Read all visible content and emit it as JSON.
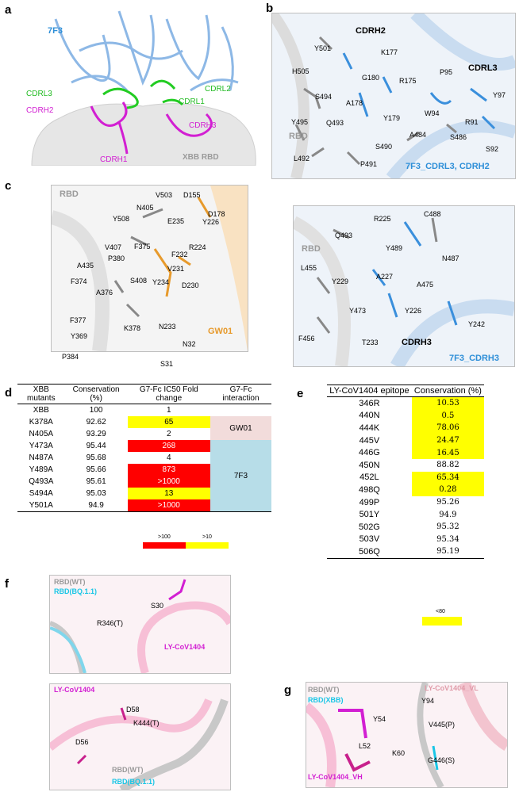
{
  "panels": {
    "a": "a",
    "b": "b",
    "c": "c",
    "d": "d",
    "e": "e",
    "f": "f",
    "g": "g"
  },
  "panel_a": {
    "title": "7F3",
    "labels": {
      "cdrl3": "CDRL3",
      "cdrl2": "CDRL2",
      "cdrl1": "CDRL1",
      "cdrh2": "CDRH2",
      "cdrh3": "CDRH3",
      "cdrh1": "CDRH1",
      "rbd": "XBB RBD"
    }
  },
  "panel_b": {
    "residues": [
      "Y501",
      "CDRH2",
      "K177",
      "H505",
      "G180",
      "R175",
      "P95",
      "CDRL3",
      "S494",
      "A178",
      "Y97",
      "W94",
      "Y495",
      "Q493",
      "Y179",
      "R91",
      "RBD",
      "A484",
      "S486",
      "L492",
      "S490",
      "S92",
      "P491"
    ],
    "caption": "7F3_CDRL3, CDRH2"
  },
  "panel_c_left": {
    "residues": [
      "RBD",
      "V503",
      "D155",
      "N405",
      "Y508",
      "D178",
      "E235",
      "Y226",
      "V407",
      "F375",
      "P380",
      "R224",
      "A435",
      "F232",
      "S408",
      "F374",
      "V231",
      "A376",
      "Y234",
      "D230",
      "F377",
      "N233",
      "Y369",
      "K378",
      "N32",
      "P384",
      "S31"
    ],
    "caption": "GW01"
  },
  "panel_c_right": {
    "residues": [
      "R225",
      "C488",
      "Q493",
      "RBD",
      "Y489",
      "L455",
      "N487",
      "A227",
      "Y229",
      "A475",
      "Y473",
      "Y226",
      "Y242",
      "F456",
      "T233",
      "CDRH3"
    ],
    "caption": "7F3_CDRH3"
  },
  "table_d": {
    "headers": [
      "XBB mutants",
      "Conservation (%)",
      "G7-Fc IC50 Fold change",
      "G7-Fc interaction"
    ],
    "rows": [
      {
        "mutant": "XBB",
        "conservation": "100",
        "fold": "1"
      },
      {
        "mutant": "K378A",
        "conservation": "92.62",
        "fold": "65"
      },
      {
        "mutant": "N405A",
        "conservation": "93.29",
        "fold": "2"
      },
      {
        "mutant": "Y473A",
        "conservation": "95.44",
        "fold": "268"
      },
      {
        "mutant": "N487A",
        "conservation": "95.68",
        "fold": "4"
      },
      {
        "mutant": "Y489A",
        "conservation": "95.66",
        "fold": "873"
      },
      {
        "mutant": "Q493A",
        "conservation": "95.61",
        "fold": ">1000"
      },
      {
        "mutant": "S494A",
        "conservation": "95.03",
        "fold": "13"
      },
      {
        "mutant": "Y501A",
        "conservation": "94.9",
        "fold": ">1000"
      }
    ],
    "groups": {
      "gw01": "GW01",
      "f7f3": "7F3"
    },
    "legend": {
      "red": ">100",
      "yellow": ">10"
    },
    "colors": {
      "red": "#ff0000",
      "yellow": "#ffff00",
      "gw01": "#f2dcdb",
      "f7f3": "#b7dde8"
    }
  },
  "table_e": {
    "headers": [
      "LY-CoV1404 epitope",
      "Conservation (%)"
    ],
    "rows": [
      {
        "epitope": "346R",
        "value": "10.53"
      },
      {
        "epitope": "440N",
        "value": "0.5"
      },
      {
        "epitope": "444K",
        "value": "78.06"
      },
      {
        "epitope": "445V",
        "value": "24.47"
      },
      {
        "epitope": "446G",
        "value": "16.45"
      },
      {
        "epitope": "450N",
        "value": "88.82"
      },
      {
        "epitope": "452L",
        "value": "65.34"
      },
      {
        "epitope": "498Q",
        "value": "0.28"
      },
      {
        "epitope": "499P",
        "value": "95.26"
      },
      {
        "epitope": "501Y",
        "value": "94.9"
      },
      {
        "epitope": "502G",
        "value": "95.32"
      },
      {
        "epitope": "503V",
        "value": "95.34"
      },
      {
        "epitope": "506Q",
        "value": "95.19"
      }
    ],
    "legend": "<80"
  },
  "panel_f_top": {
    "wt": "RBD(WT)",
    "mut": "RBD(BQ.1.1)",
    "res1": "S30",
    "res2": "R346(T)",
    "ab": "LY-CoV1404"
  },
  "panel_f_bottom": {
    "ab": "LY-CoV1404",
    "res1": "D58",
    "res2": "D56",
    "res3": "K444(T)",
    "wt": "RBD(WT)",
    "mut": "RBD(BQ.1.1)"
  },
  "panel_g": {
    "wt": "RBD(WT)",
    "mut": "RBD(XBB)",
    "vl": "LY-CoV1404_VL",
    "y94": "Y94",
    "y54": "Y54",
    "v445": "V445(P)",
    "l52": "L52",
    "k60": "K60",
    "g446": "G446(S)",
    "vh": "LY-CoV1404_VH"
  }
}
